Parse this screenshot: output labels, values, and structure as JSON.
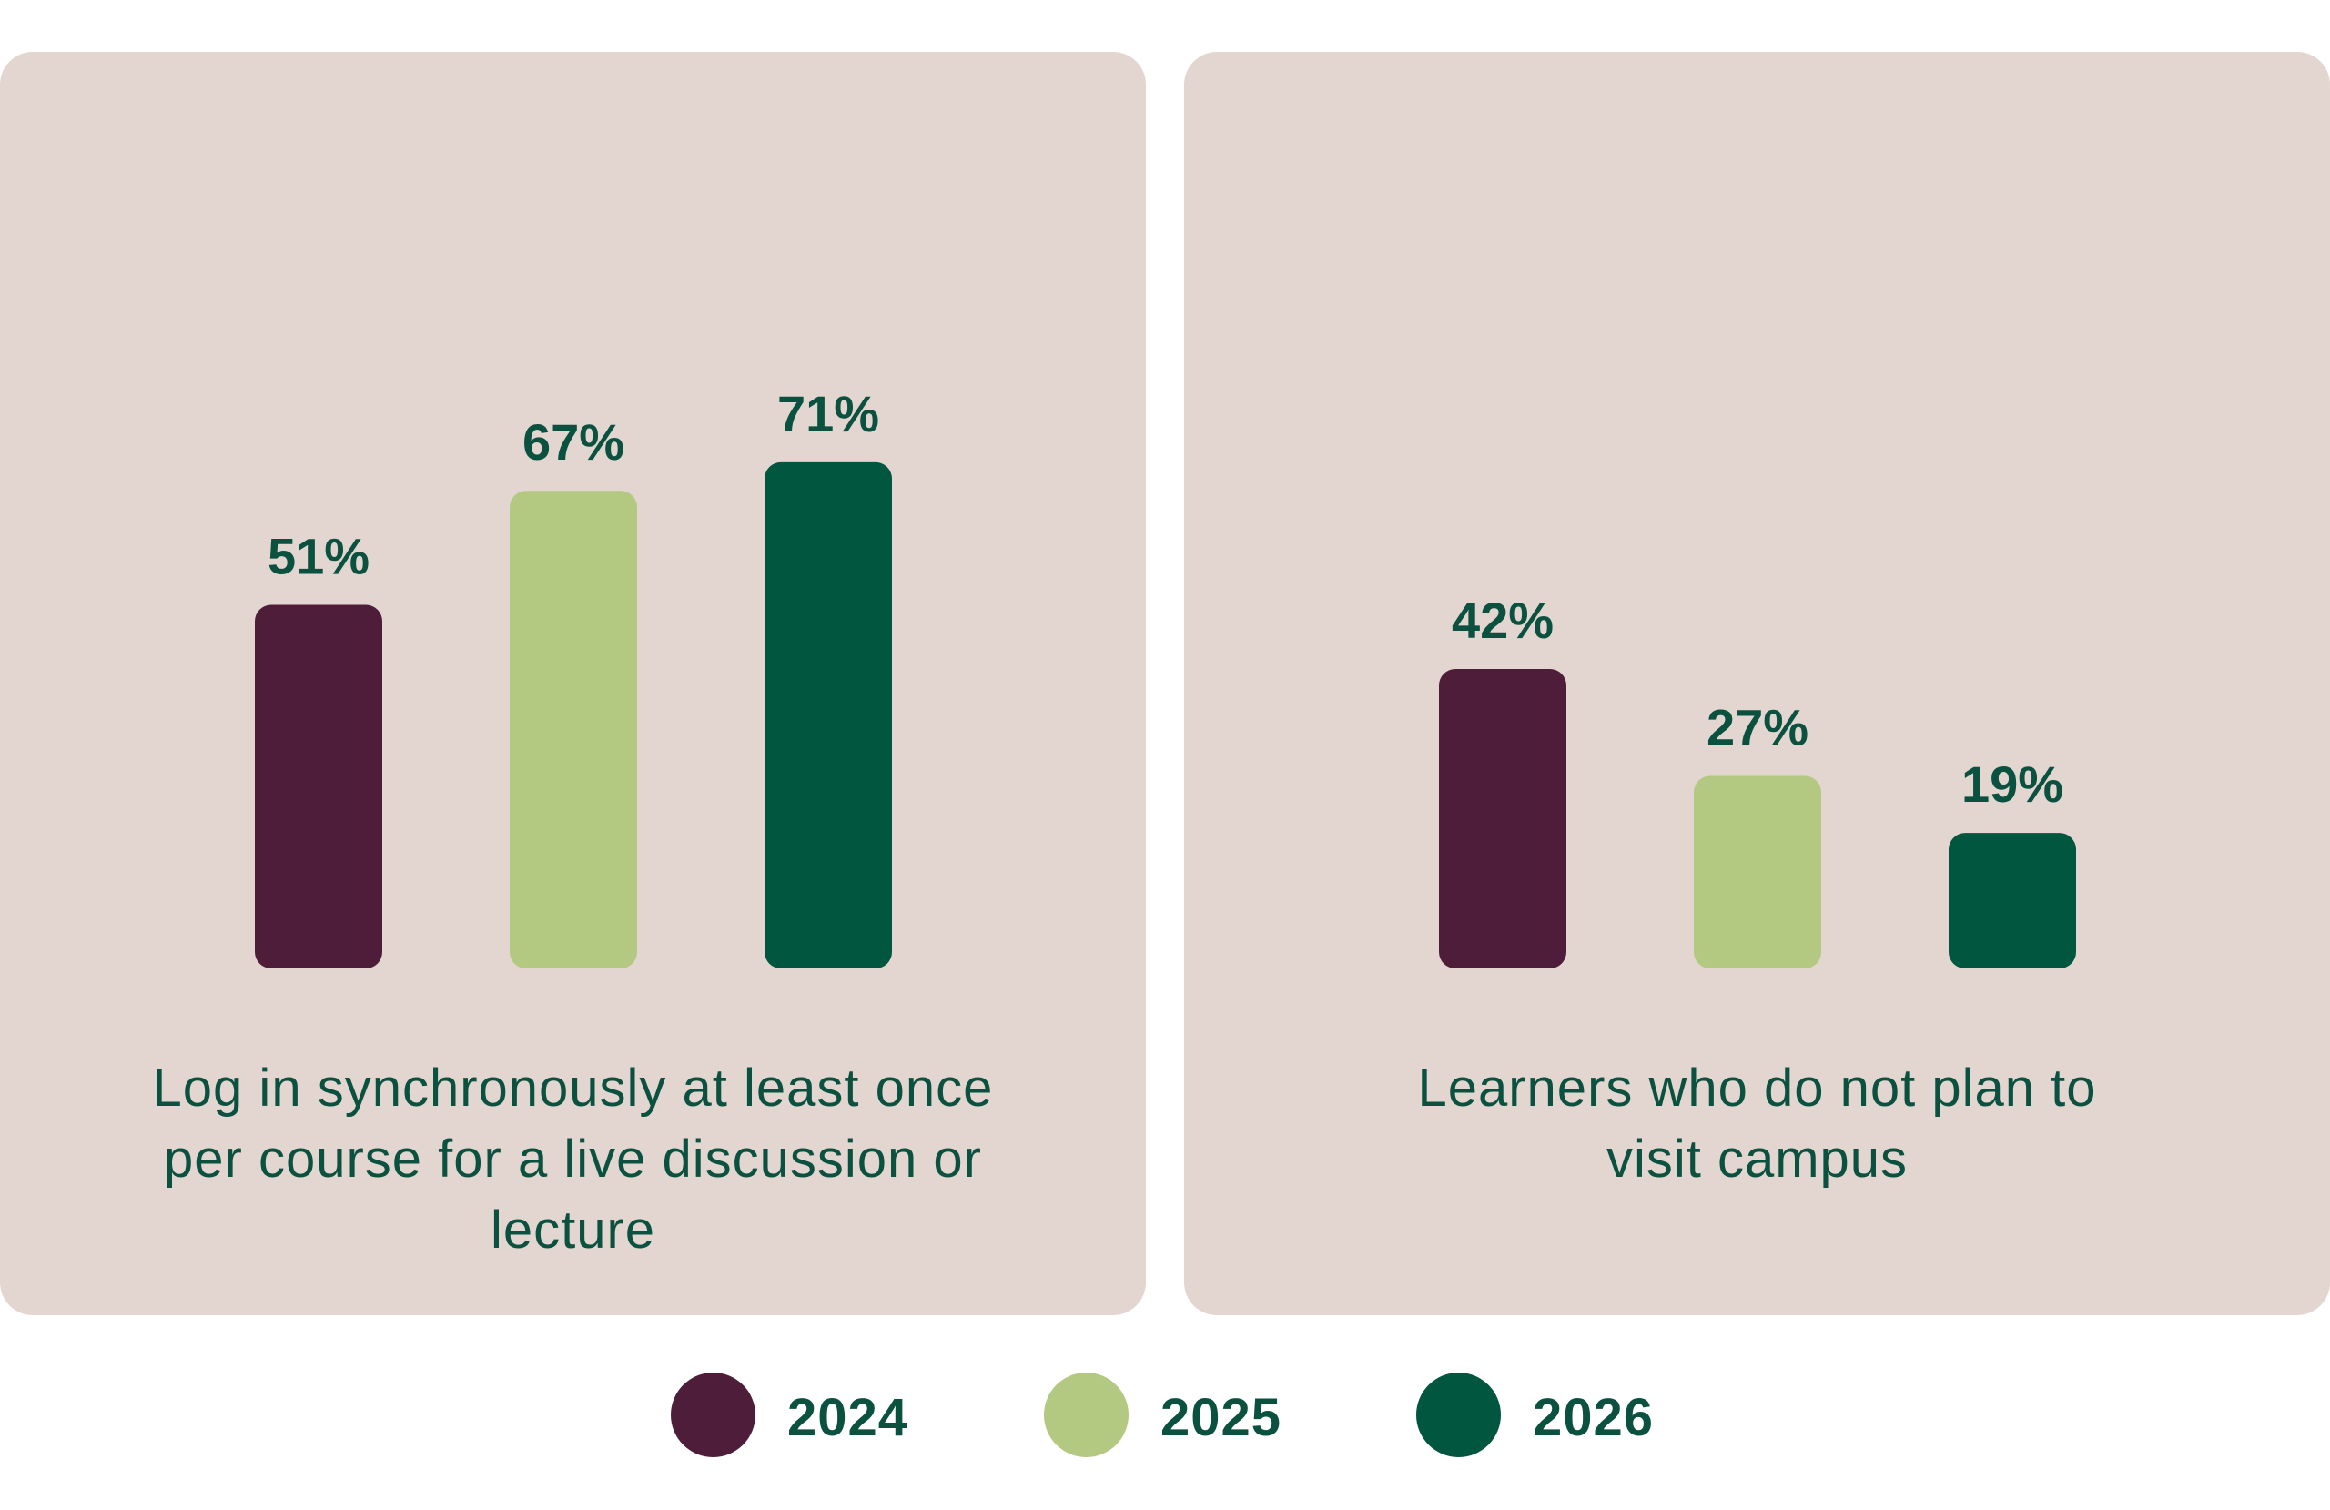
{
  "colors": {
    "2024": "#4e1d39",
    "2025": "#b3c880",
    "2026": "#00563f"
  },
  "legend": [
    {
      "label": "2024",
      "color": "#4e1d39"
    },
    {
      "label": "2025",
      "color": "#b3c880"
    },
    {
      "label": "2026",
      "color": "#00563f"
    }
  ],
  "chart_data": [
    {
      "type": "bar",
      "title": "Log in synchronously at least once per course for a live discussion or lecture",
      "categories": [
        "2024",
        "2025",
        "2026"
      ],
      "values": [
        51,
        67,
        71
      ],
      "labels": [
        "51%",
        "67%",
        "71%"
      ],
      "unit": "%",
      "ylim": [
        0,
        100
      ],
      "grid": false,
      "legend_position": "bottom"
    },
    {
      "type": "bar",
      "title": "Learners who do not plan to visit campus",
      "categories": [
        "2024",
        "2025",
        "2026"
      ],
      "values": [
        42,
        27,
        19
      ],
      "labels": [
        "42%",
        "27%",
        "19%"
      ],
      "unit": "%",
      "ylim": [
        0,
        100
      ],
      "grid": false,
      "legend_position": "bottom"
    }
  ]
}
